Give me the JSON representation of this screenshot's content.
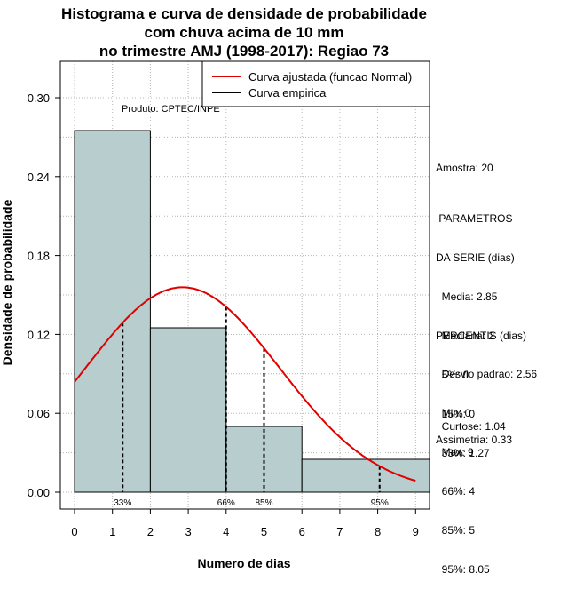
{
  "chart_data": {
    "type": "bar",
    "title": [
      "Histograma e curva de densidade de probabilidade",
      "com chuva acima de 10 mm",
      "no trimestre AMJ (1998-2017): Regiao 73"
    ],
    "xlabel": "Numero de dias",
    "ylabel": "Densidade de probabilidade",
    "xlim": [
      0,
      9
    ],
    "ylim": [
      0,
      0.3
    ],
    "x_ticks": [
      "0",
      "1",
      "2",
      "3",
      "4",
      "5",
      "6",
      "7",
      "8",
      "9"
    ],
    "y_ticks": [
      "0.00",
      "0.06",
      "0.12",
      "0.18",
      "0.24",
      "0.30"
    ],
    "bins": [
      {
        "start": 0,
        "end": 2,
        "density": 0.275
      },
      {
        "start": 2,
        "end": 4,
        "density": 0.125
      },
      {
        "start": 4,
        "end": 6,
        "density": 0.05
      },
      {
        "start": 6,
        "end": 9.4,
        "density": 0.025
      }
    ],
    "normal_fit": {
      "mean": 2.85,
      "sd": 2.56,
      "x_from": 0,
      "x_to": 9
    },
    "percentile_lines": [
      {
        "x": 1.27,
        "label": "33%"
      },
      {
        "x": 4,
        "label": "66%"
      },
      {
        "x": 5,
        "label": "85%"
      },
      {
        "x": 8.05,
        "label": "95%"
      }
    ],
    "legend": [
      {
        "label": "Curva ajustada (funcao Normal)",
        "color": "#e00000"
      },
      {
        "label": "Curva empirica",
        "color": "#000000"
      }
    ],
    "legend_position": "top-right",
    "annotation": "Produto: CPTEC/INPE",
    "bar_color": "#b8cdcd",
    "grid": true
  },
  "side_panel": {
    "amostra": "Amostra: 20",
    "parametros": [
      " PARAMETROS",
      "DA SERIE (dias)",
      "  Media: 2.85",
      "  Mediana: 2",
      "  Desvio padrao: 2.56",
      "  Min: 0",
      "  Max: 9"
    ],
    "percentis": [
      "PERCENTIS (dias)",
      "  5%: 0",
      "  15%: 0",
      "  33%: 1.27",
      "  66%: 4",
      "  85%: 5",
      "  95%: 8.05"
    ],
    "curtose": "  Curtose: 1.04",
    "assimetria": "Assimetria: 0.33"
  }
}
